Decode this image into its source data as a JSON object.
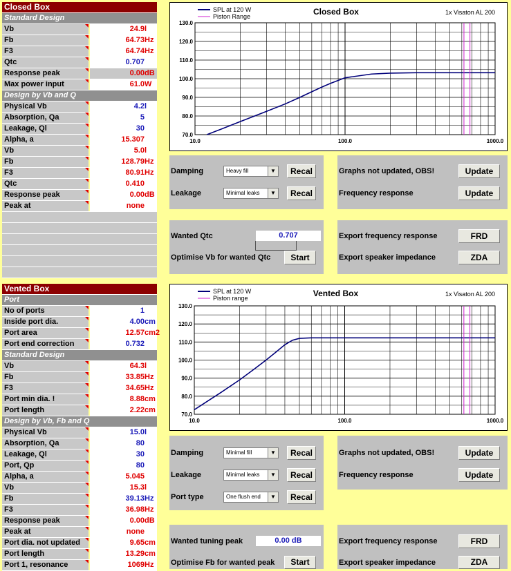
{
  "closed": {
    "title": "Closed Box",
    "std_header": "Standard Design",
    "std": [
      {
        "label": "Vb",
        "value": "24.9",
        "unit": "l",
        "color": "red"
      },
      {
        "label": "Fb",
        "value": "64.73",
        "unit": "Hz",
        "color": "red"
      },
      {
        "label": "F3",
        "value": "64.74",
        "unit": "Hz",
        "color": "red"
      },
      {
        "label": "Qtc",
        "value": "0.707",
        "unit": "",
        "color": "blue"
      },
      {
        "label": "Response peak",
        "value": "0.00",
        "unit": "dB",
        "color": "red"
      },
      {
        "label": "Max power input",
        "value": "61.0",
        "unit": "W",
        "color": "red"
      }
    ],
    "des_header": "Design by Vb and Q",
    "des": [
      {
        "label": "Physical Vb",
        "value": "4.2",
        "unit": "l",
        "color": "blue"
      },
      {
        "label": "Absorption, Qa",
        "value": "5",
        "unit": "",
        "color": "blue"
      },
      {
        "label": "Leakage, Ql",
        "value": "30",
        "unit": "",
        "color": "blue"
      },
      {
        "label": "Alpha, a",
        "value": "15.307",
        "unit": "",
        "color": "red"
      },
      {
        "label": "Vb",
        "value": "5.0",
        "unit": "l",
        "color": "red"
      },
      {
        "label": "Fb",
        "value": "128.79",
        "unit": "Hz",
        "color": "red"
      },
      {
        "label": "F3",
        "value": "80.91",
        "unit": "Hz",
        "color": "red"
      },
      {
        "label": "Qtc",
        "value": "0.410",
        "unit": "",
        "color": "red"
      },
      {
        "label": "Response peak",
        "value": "0.00",
        "unit": "dB",
        "color": "red"
      },
      {
        "label": "Peak at",
        "value": "none",
        "unit": "",
        "color": "red"
      }
    ],
    "chart": {
      "title": "Closed Box",
      "driver": "1x Visaton AL 200",
      "legend": [
        "SPL at 120 W",
        "Piston Range"
      ],
      "y_ticks": [
        "130.0",
        "120.0",
        "110.0",
        "100.0",
        "90.0",
        "80.0",
        "70.0"
      ],
      "x_ticks": [
        "10.0",
        "100.0",
        "1000.0"
      ]
    },
    "damping_label": "Damping",
    "damping_value": "Heavy fill",
    "recal": "Recal",
    "leakage_label": "Leakage",
    "leakage_value": "Minimal leaks",
    "graphs_label": "Graphs not updated, OBS!",
    "update": "Update",
    "freq_label": "Frequency response",
    "wanted_label": "Wanted Qtc",
    "wanted_value": "0.707",
    "optimise_label": "Optimise Vb for wanted Qtc",
    "start": "Start",
    "export_fr_label": "Export frequency response",
    "frd": "FRD",
    "export_imp_label": "Export speaker impedance",
    "zda": "ZDA"
  },
  "vented": {
    "title": "Vented Box",
    "port_header": "Port",
    "port": [
      {
        "label": "No of ports",
        "value": "1",
        "unit": "",
        "color": "blue"
      },
      {
        "label": "Inside port dia.",
        "value": "4.00",
        "unit": "cm",
        "color": "blue"
      },
      {
        "label": "Port area",
        "value": "12.57",
        "unit": "cm2",
        "color": "red"
      },
      {
        "label": "Port end correction",
        "value": "0.732",
        "unit": "",
        "color": "blue"
      }
    ],
    "std_header": "Standard Design",
    "std": [
      {
        "label": "Vb",
        "value": "64.3",
        "unit": "l",
        "color": "red"
      },
      {
        "label": "Fb",
        "value": "33.85",
        "unit": "Hz",
        "color": "red"
      },
      {
        "label": "F3",
        "value": "34.65",
        "unit": "Hz",
        "color": "red"
      },
      {
        "label": "Port min dia. !",
        "value": "8.88",
        "unit": "cm",
        "color": "red"
      },
      {
        "label": "Port length",
        "value": "2.22",
        "unit": "cm",
        "color": "red"
      }
    ],
    "des_header": "Design by Vb, Fb and Q",
    "des": [
      {
        "label": "Physical Vb",
        "value": "15.0",
        "unit": "l",
        "color": "blue"
      },
      {
        "label": "Absorption, Qa",
        "value": "80",
        "unit": "",
        "color": "blue"
      },
      {
        "label": "Leakage, Ql",
        "value": "30",
        "unit": "",
        "color": "blue"
      },
      {
        "label": "Port, Qp",
        "value": "80",
        "unit": "",
        "color": "blue"
      },
      {
        "label": "Alpha, a",
        "value": "5.045",
        "unit": "",
        "color": "red"
      },
      {
        "label": "Vb",
        "value": "15.3",
        "unit": "l",
        "color": "red"
      },
      {
        "label": "Fb",
        "value": "39.13",
        "unit": "Hz",
        "color": "blue"
      },
      {
        "label": "F3",
        "value": "36.98",
        "unit": "Hz",
        "color": "red"
      },
      {
        "label": "Response peak",
        "value": "0.00",
        "unit": "dB",
        "color": "red"
      },
      {
        "label": "Peak at",
        "value": "none",
        "unit": "",
        "color": "red"
      },
      {
        "label": "Port dia. not updated",
        "value": "9.65",
        "unit": "cm",
        "color": "red"
      },
      {
        "label": "Port length",
        "value": "13.29",
        "unit": "cm",
        "color": "red"
      },
      {
        "label": "Port 1, resonance",
        "value": "1069",
        "unit": "Hz",
        "color": "red"
      }
    ],
    "chart": {
      "title": "Vented Box",
      "driver": "1x Visaton AL 200",
      "legend": [
        "SPL at 120 W",
        "Piston range"
      ],
      "y_ticks": [
        "130.0",
        "120.0",
        "110.0",
        "100.0",
        "90.0",
        "80.0",
        "70.0"
      ],
      "x_ticks": [
        "10.0",
        "100.0",
        "1000.0"
      ]
    },
    "damping_label": "Damping",
    "damping_value": "Minimal fill",
    "recal": "Recal",
    "leakage_label": "Leakage",
    "leakage_value": "Minimal leaks",
    "porttype_label": "Port type",
    "porttype_value": "One flush end",
    "graphs_label": "Graphs not updated, OBS!",
    "update": "Update",
    "freq_label": "Frequency response",
    "wanted_label": "Wanted tuning peak",
    "wanted_value": "0.00",
    "wanted_unit": "dB",
    "optimise_label": "Optimise Fb for wanted peak",
    "start": "Start",
    "export_fr_label": "Export frequency response",
    "frd": "FRD",
    "export_imp_label": "Export speaker impedance",
    "zda": "ZDA"
  },
  "chart_data": [
    {
      "type": "line",
      "title": "Closed Box",
      "xscale": "log",
      "xlim": [
        10,
        1000
      ],
      "ylim": [
        70,
        130
      ],
      "series": [
        {
          "name": "SPL at 120 W",
          "color": "#00007a",
          "x": [
            12,
            15,
            20,
            30,
            40,
            50,
            60,
            70,
            80,
            100,
            150,
            200,
            300,
            1000
          ],
          "y": [
            70,
            73,
            77,
            82.5,
            86.5,
            90,
            93,
            95.5,
            97.5,
            100.5,
            102.5,
            103,
            103.2,
            103.2
          ]
        },
        {
          "name": "Piston Range",
          "color": "#d020d0",
          "x": [
            620,
            680
          ],
          "y": [
            70,
            130
          ]
        }
      ]
    },
    {
      "type": "line",
      "title": "Vented Box",
      "xscale": "log",
      "xlim": [
        10,
        1000
      ],
      "ylim": [
        70,
        130
      ],
      "series": [
        {
          "name": "SPL at 120 W",
          "color": "#00007a",
          "x": [
            10,
            15,
            20,
            25,
            30,
            35,
            40,
            45,
            50,
            60,
            80,
            100,
            1000
          ],
          "y": [
            72.5,
            82,
            89,
            95,
            100,
            104.5,
            108.5,
            111,
            112,
            112.3,
            112.3,
            112.3,
            112.3
          ]
        },
        {
          "name": "Piston range",
          "color": "#d020d0",
          "x": [
            620,
            680
          ],
          "y": [
            70,
            130
          ]
        }
      ]
    }
  ]
}
